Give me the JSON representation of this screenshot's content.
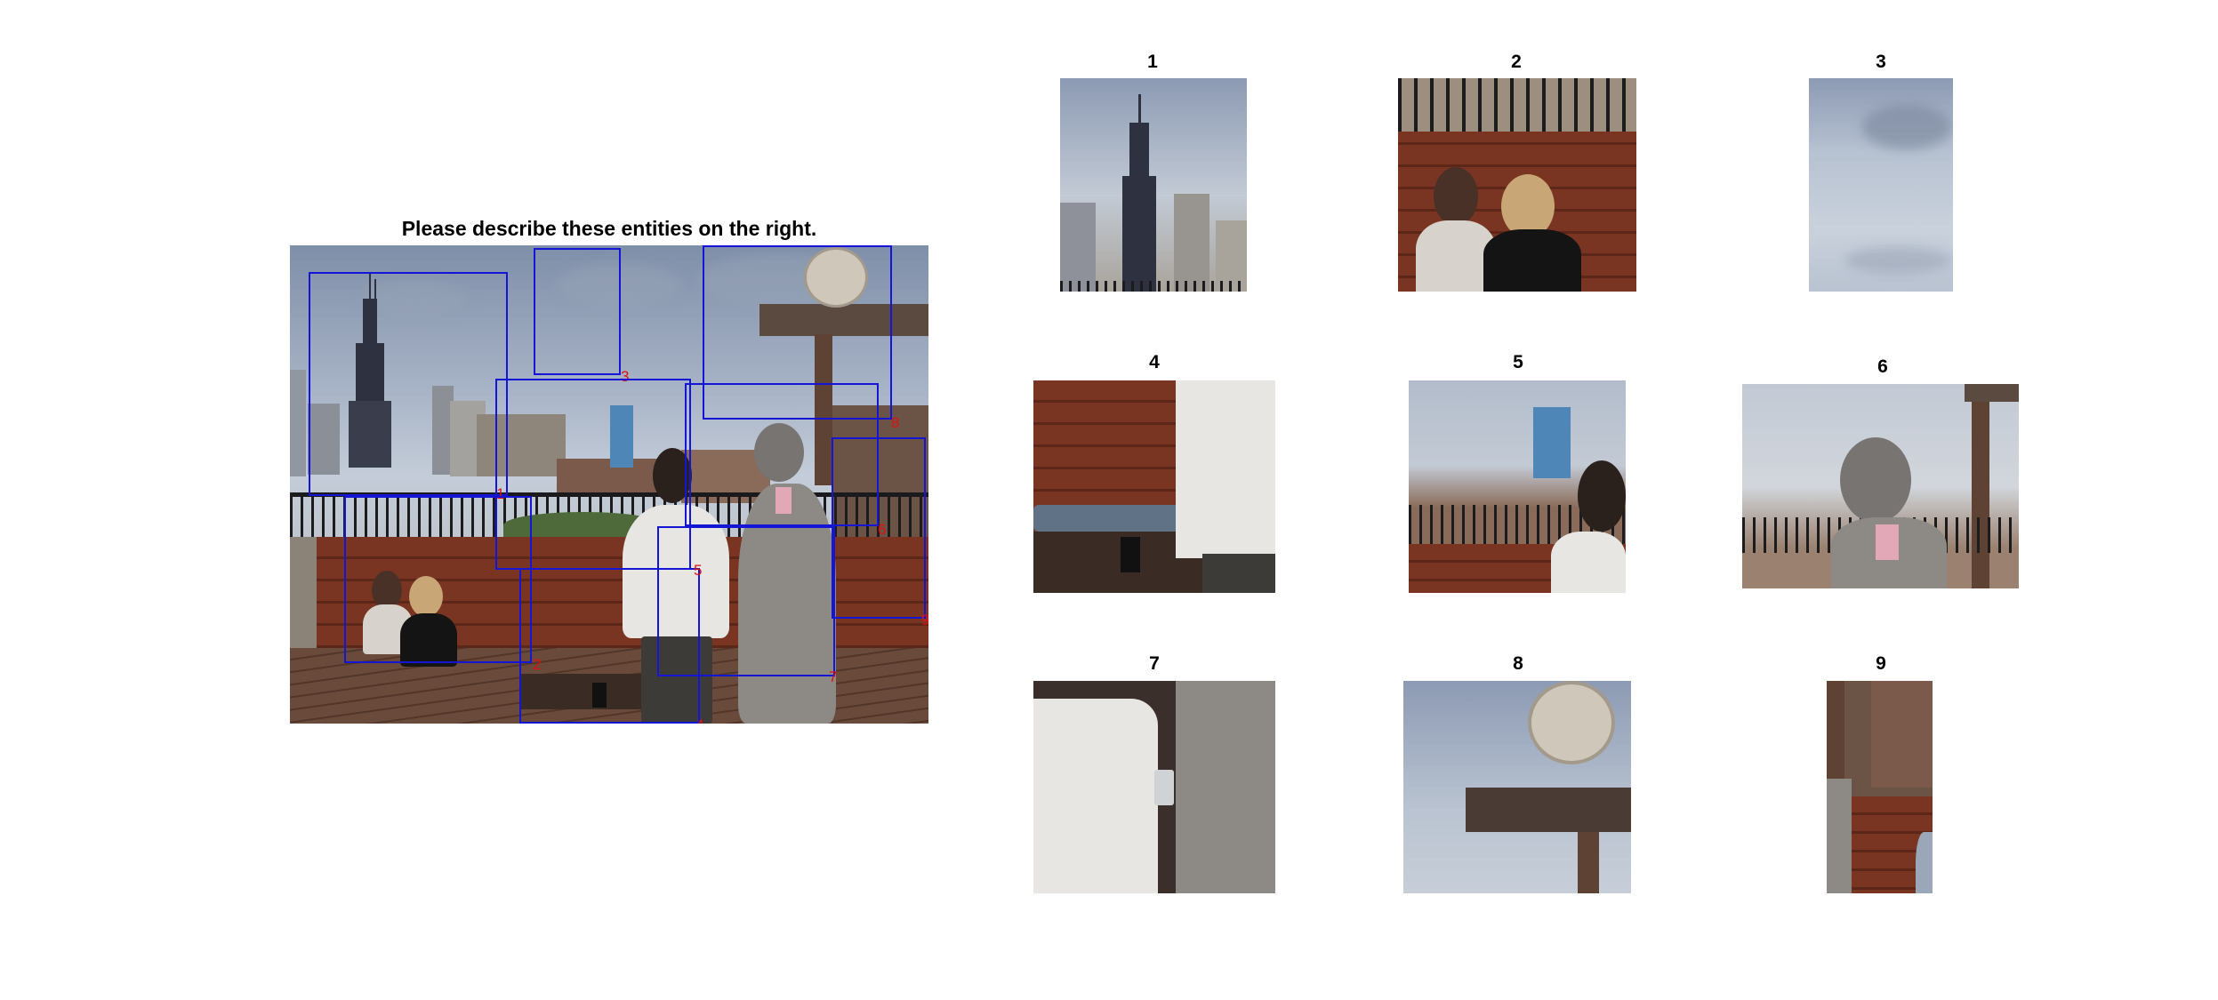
{
  "prompt": "Please describe these entities on the right.",
  "box_labels": [
    "1",
    "2",
    "3",
    "4",
    "5",
    "6",
    "7",
    "8",
    "9"
  ],
  "crops": [
    {
      "title": "1"
    },
    {
      "title": "2"
    },
    {
      "title": "3"
    },
    {
      "title": "4"
    },
    {
      "title": "5"
    },
    {
      "title": "6"
    },
    {
      "title": "7"
    },
    {
      "title": "8"
    },
    {
      "title": "9"
    }
  ],
  "colors": {
    "box_stroke": "#1515d6",
    "box_label": "#e01010"
  }
}
